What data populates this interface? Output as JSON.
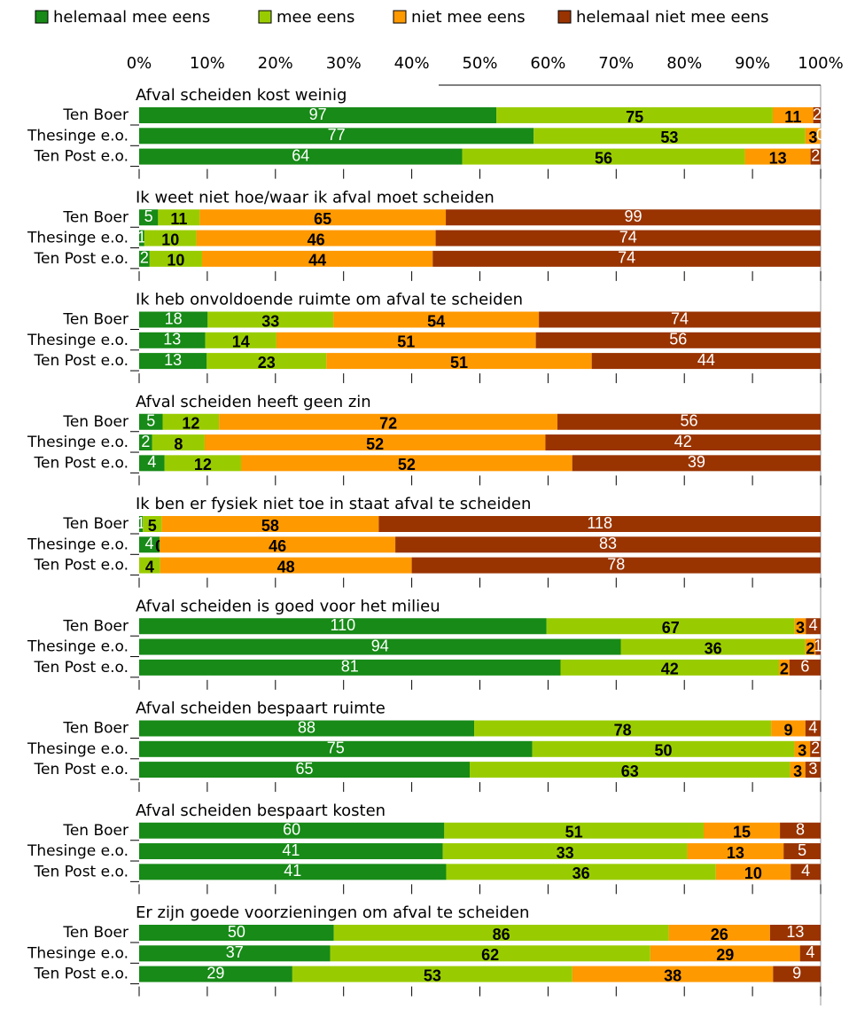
{
  "chart_data": {
    "type": "bar",
    "orientation": "horizontal",
    "stacked": "percent",
    "series": [
      {
        "name": "helemaal mee eens",
        "color": "#178a17"
      },
      {
        "name": "mee eens",
        "color": "#99cc00"
      },
      {
        "name": "niet mee eens",
        "color": "#ff9900"
      },
      {
        "name": "helemaal niet mee eens",
        "color": "#993300"
      }
    ],
    "xlim": [
      0,
      100
    ],
    "xticks": [
      {
        "value": 0,
        "label": "0%"
      },
      {
        "value": 10,
        "label": "10%"
      },
      {
        "value": 20,
        "label": "20%"
      },
      {
        "value": 30,
        "label": "30%"
      },
      {
        "value": 40,
        "label": "40%"
      },
      {
        "value": 50,
        "label": "50%"
      },
      {
        "value": 60,
        "label": "60%"
      },
      {
        "value": 70,
        "label": "70%"
      },
      {
        "value": 80,
        "label": "80%"
      },
      {
        "value": 90,
        "label": "90%"
      },
      {
        "value": 100,
        "label": "100%"
      }
    ],
    "groups": [
      {
        "title": "Afval scheiden kost weinig",
        "rows": [
          {
            "label": "Ten Boer",
            "values": [
              97,
              75,
              11,
              2
            ]
          },
          {
            "label": "Thesinge e.o.",
            "values": [
              77,
              53,
              3,
              0
            ]
          },
          {
            "label": "Ten Post e.o.",
            "values": [
              64,
              56,
              13,
              2
            ]
          }
        ]
      },
      {
        "title": "Ik weet niet hoe/waar ik afval moet scheiden",
        "rows": [
          {
            "label": "Ten Boer",
            "values": [
              5,
              11,
              65,
              99
            ]
          },
          {
            "label": "Thesinge e.o.",
            "values": [
              1,
              10,
              46,
              74
            ]
          },
          {
            "label": "Ten Post e.o.",
            "values": [
              2,
              10,
              44,
              74
            ]
          }
        ]
      },
      {
        "title": "Ik heb onvoldoende ruimte om afval te scheiden",
        "rows": [
          {
            "label": "Ten Boer",
            "values": [
              18,
              33,
              54,
              74
            ]
          },
          {
            "label": "Thesinge e.o.",
            "values": [
              13,
              14,
              51,
              56
            ]
          },
          {
            "label": "Ten Post e.o.",
            "values": [
              13,
              23,
              51,
              44
            ]
          }
        ]
      },
      {
        "title": "Afval scheiden heeft geen zin",
        "rows": [
          {
            "label": "Ten Boer",
            "values": [
              5,
              12,
              72,
              56
            ]
          },
          {
            "label": "Thesinge e.o.",
            "values": [
              2,
              8,
              52,
              42
            ]
          },
          {
            "label": "Ten Post e.o.",
            "values": [
              4,
              12,
              52,
              39
            ]
          }
        ]
      },
      {
        "title": "Ik ben er fysiek niet toe in staat afval te scheiden",
        "rows": [
          {
            "label": "Ten Boer",
            "values": [
              1,
              5,
              58,
              118
            ]
          },
          {
            "label": "Thesinge e.o.",
            "values": [
              4,
              0,
              46,
              83
            ]
          },
          {
            "label": "Ten Post e.o.",
            "values": [
              0,
              4,
              48,
              78
            ]
          }
        ]
      },
      {
        "title": "Afval scheiden is goed voor het milieu",
        "rows": [
          {
            "label": "Ten Boer",
            "values": [
              110,
              67,
              3,
              4
            ]
          },
          {
            "label": "Thesinge e.o.",
            "values": [
              94,
              36,
              2,
              1
            ]
          },
          {
            "label": "Ten Post e.o.",
            "values": [
              81,
              42,
              2,
              6
            ]
          }
        ]
      },
      {
        "title": "Afval scheiden bespaart ruimte",
        "rows": [
          {
            "label": "Ten Boer",
            "values": [
              88,
              78,
              9,
              4
            ]
          },
          {
            "label": "Thesinge e.o.",
            "values": [
              75,
              50,
              3,
              2
            ]
          },
          {
            "label": "Ten Post e.o.",
            "values": [
              65,
              63,
              3,
              3
            ]
          }
        ]
      },
      {
        "title": "Afval scheiden bespaart kosten",
        "rows": [
          {
            "label": "Ten Boer",
            "values": [
              60,
              51,
              15,
              8
            ]
          },
          {
            "label": "Thesinge e.o.",
            "values": [
              41,
              33,
              13,
              5
            ]
          },
          {
            "label": "Ten Post e.o.",
            "values": [
              41,
              36,
              10,
              4
            ]
          }
        ]
      },
      {
        "title": "Er zijn goede voorzieningen om afval te scheiden",
        "rows": [
          {
            "label": "Ten Boer",
            "values": [
              50,
              86,
              26,
              13
            ]
          },
          {
            "label": "Thesinge e.o.",
            "values": [
              37,
              62,
              29,
              4
            ]
          },
          {
            "label": "Ten Post e.o.",
            "values": [
              29,
              53,
              38,
              9
            ]
          }
        ]
      }
    ]
  }
}
